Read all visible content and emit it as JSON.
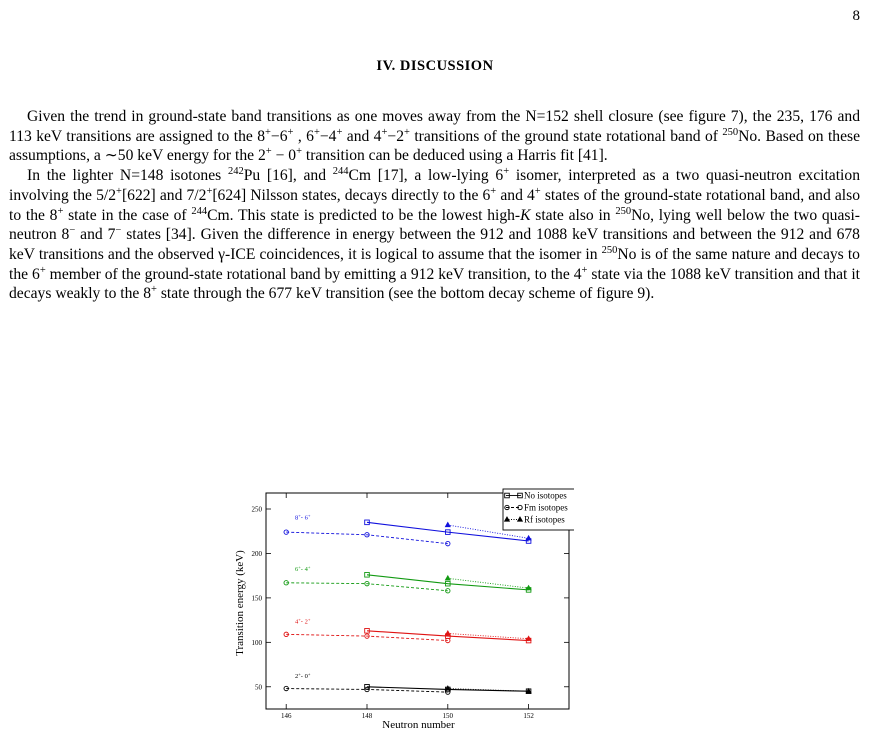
{
  "page_number": "8",
  "section_heading": "IV.   DISCUSSION",
  "paragraphs": [
    [
      {
        "t": "Given the trend in ground-state band transitions as one moves away from the N=152 shell closure (see figure 7), the 235, 176 and 113 keV transitions are assigned to the 8"
      },
      {
        "sup": "+"
      },
      {
        "t": "−6"
      },
      {
        "sup": "+"
      },
      {
        "t": " , 6"
      },
      {
        "sup": "+"
      },
      {
        "t": "−4"
      },
      {
        "sup": "+"
      },
      {
        "t": " and 4"
      },
      {
        "sup": "+"
      },
      {
        "t": "−2"
      },
      {
        "sup": "+"
      },
      {
        "t": " transitions of the ground state rotational band of "
      },
      {
        "sup": "250"
      },
      {
        "t": "No. Based on these assumptions, a ∼50 keV energy for the 2"
      },
      {
        "sup": "+"
      },
      {
        "t": " − 0"
      },
      {
        "sup": "+"
      },
      {
        "t": " transition can be deduced using a Harris fit [41]."
      }
    ],
    [
      {
        "t": "In the lighter N=148 isotones "
      },
      {
        "sup": "242"
      },
      {
        "t": "Pu [16], and "
      },
      {
        "sup": "244"
      },
      {
        "t": "Cm [17], a low-lying 6"
      },
      {
        "sup": "+"
      },
      {
        "t": " isomer, interpreted as a two quasi-neutron excitation involving the 5/2"
      },
      {
        "sup": "+"
      },
      {
        "t": "[622] and 7/2"
      },
      {
        "sup": "+"
      },
      {
        "t": "[624] Nilsson states, decays directly to the 6"
      },
      {
        "sup": "+"
      },
      {
        "t": " and 4"
      },
      {
        "sup": "+"
      },
      {
        "t": " states of the ground-state rotational band, and also to the 8"
      },
      {
        "sup": "+"
      },
      {
        "t": " state in the case of "
      },
      {
        "sup": "244"
      },
      {
        "t": "Cm. This state is predicted to be the lowest high-"
      },
      {
        "i": "K"
      },
      {
        "t": " state also in "
      },
      {
        "sup": "250"
      },
      {
        "t": "No, lying well below the two quasi-neutron 8"
      },
      {
        "sup": "−"
      },
      {
        "t": " and 7"
      },
      {
        "sup": "−"
      },
      {
        "t": " states [34]. Given the difference in energy between the 912 and 1088 keV transitions and between the 912 and 678 keV transitions and the observed γ-ICE coincidences, it is logical to assume that the isomer in "
      },
      {
        "sup": "250"
      },
      {
        "t": "No is of the same nature and decays to the 6"
      },
      {
        "sup": "+"
      },
      {
        "t": " member of the ground-state rotational band by emitting a 912 keV transition, to the 4"
      },
      {
        "sup": "+"
      },
      {
        "t": " state via the 1088 keV transition and that it decays weakly to the 8"
      },
      {
        "sup": "+"
      },
      {
        "t": " state through the 677 keV transition (see the bottom decay scheme of figure 9)."
      }
    ]
  ],
  "chart_data": {
    "type": "line",
    "xlabel": "Neutron number",
    "ylabel": "Transition energy (keV)",
    "xlim": [
      145.5,
      153
    ],
    "ylim": [
      25,
      268
    ],
    "xticks": [
      146,
      148,
      150,
      152
    ],
    "yticks": [
      50,
      100,
      150,
      200,
      250
    ],
    "grid": false,
    "legend_position": "top-right",
    "series": [
      {
        "name": "No isotopes",
        "marker": "square",
        "line": "solid",
        "points": {
          "8-6": [
            [
              148,
              235
            ],
            [
              150,
              224
            ],
            [
              152,
              214
            ]
          ],
          "6-4": [
            [
              148,
              176
            ],
            [
              150,
              166
            ],
            [
              152,
              159
            ]
          ],
          "4-2": [
            [
              148,
              113
            ],
            [
              150,
              107
            ],
            [
              152,
              102
            ]
          ],
          "2-0": [
            [
              148,
              50
            ],
            [
              150,
              47
            ],
            [
              152,
              45
            ]
          ]
        }
      },
      {
        "name": "Fm isotopes",
        "marker": "circle",
        "line": "dashed",
        "points": {
          "8-6": [
            [
              146,
              224
            ],
            [
              148,
              221
            ],
            [
              150,
              211
            ]
          ],
          "6-4": [
            [
              146,
              167
            ],
            [
              148,
              166
            ],
            [
              150,
              158
            ]
          ],
          "4-2": [
            [
              146,
              109
            ],
            [
              148,
              107
            ],
            [
              150,
              102
            ]
          ],
          "2-0": [
            [
              146,
              48
            ],
            [
              148,
              47
            ],
            [
              150,
              44
            ]
          ]
        }
      },
      {
        "name": "Rf isotopes",
        "marker": "triangle",
        "line": "dotted",
        "points": {
          "8-6": [
            [
              150,
              232
            ],
            [
              152,
              217
            ]
          ],
          "6-4": [
            [
              150,
              172
            ],
            [
              152,
              161
            ]
          ],
          "4-2": [
            [
              150,
              110
            ],
            [
              152,
              104
            ]
          ],
          "2-0": [
            [
              150,
              48
            ],
            [
              152,
              45
            ]
          ]
        }
      }
    ],
    "bands": [
      {
        "key": "8-6",
        "label_base": "8",
        "label_sup1": "+",
        "label_mid": "- 6",
        "label_sup2": "+",
        "color": "#1010dd",
        "label_y": 238
      },
      {
        "key": "6-4",
        "label_base": "6",
        "label_sup1": "+",
        "label_mid": "- 4",
        "label_sup2": "+",
        "color": "#129a12",
        "label_y": 180
      },
      {
        "key": "4-2",
        "label_base": "4",
        "label_sup1": "+",
        "label_mid": "- 2",
        "label_sup2": "+",
        "color": "#e01414",
        "label_y": 121
      },
      {
        "key": "2-0",
        "label_base": "2",
        "label_sup1": "+",
        "label_mid": "- 0",
        "label_sup2": "+",
        "color": "#000000",
        "label_y": 60
      }
    ]
  }
}
